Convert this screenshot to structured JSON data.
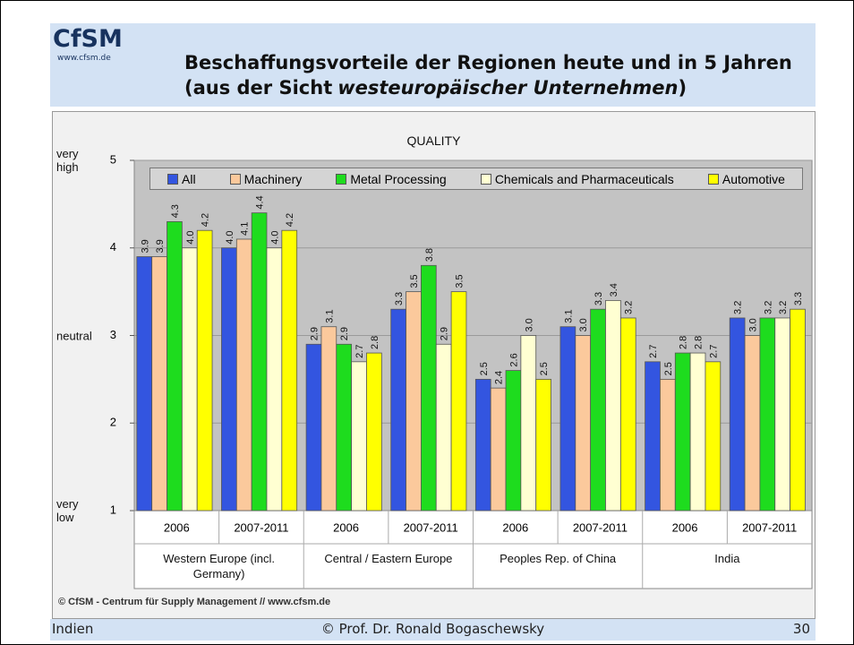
{
  "header": {
    "logo": "CfSM",
    "website": "www.cfsm.de",
    "title_line1": "Beschaffungsvorteile der Regionen heute und in 5 Jahren",
    "title_line2": {
      "prefix": "(aus der Sicht",
      "emphasis": "westeuropäischer Unternehmen",
      "suffix": ")"
    }
  },
  "chart_data": {
    "type": "bar",
    "title": "QUALITY",
    "categories": [
      "2006",
      "2007-2011",
      "2006",
      "2007-2011",
      "2006",
      "2007-2011",
      "2006",
      "2007-2011"
    ],
    "groups": [
      "Western Europe (incl. Germany)",
      "Central / Eastern Europe",
      "Peoples Rep. of China",
      "India"
    ],
    "series": [
      {
        "name": "All",
        "color": "#3355e0",
        "values": [
          3.9,
          4.0,
          2.9,
          3.3,
          2.5,
          3.1,
          2.7,
          3.2
        ],
        "value_labels": [
          "3.9",
          "4.0",
          "2.9",
          "3.3",
          "2.5",
          "3.1",
          "2.7",
          "3.2"
        ]
      },
      {
        "name": "Machinery",
        "color": "#fbc99c",
        "values": [
          3.9,
          4.1,
          3.1,
          3.5,
          2.4,
          3.0,
          2.5,
          3.0
        ],
        "value_labels": [
          "3.9",
          "4.1",
          "3.1",
          "3.5",
          "2.4",
          "3.0",
          "2.5",
          "3.0"
        ]
      },
      {
        "name": "Metal Processing",
        "color": "#1edc1e",
        "values": [
          4.3,
          4.4,
          2.9,
          3.8,
          2.6,
          3.3,
          2.8,
          3.2
        ],
        "value_labels": [
          "4.3",
          "4.4",
          "2.9",
          "3.8",
          "2.6",
          "3.3",
          "2.8",
          "3.2"
        ]
      },
      {
        "name": "Chemicals and Pharmaceuticals",
        "color": "#ffffd2",
        "values": [
          4.0,
          4.0,
          2.7,
          2.9,
          3.0,
          3.4,
          2.8,
          3.2
        ],
        "value_labels": [
          "4.0",
          "4.0",
          "2.7",
          "2.9",
          "3.0",
          "3.4",
          "2.8",
          "3.2"
        ]
      },
      {
        "name": "Automotive",
        "color": "#ffff00",
        "values": [
          4.2,
          4.2,
          2.8,
          3.5,
          2.5,
          3.2,
          2.7,
          3.3
        ],
        "value_labels": [
          "4.2",
          "4.2",
          "2.8",
          "3.5",
          "2.5",
          "3.2",
          "2.7",
          "3.3"
        ]
      }
    ],
    "ylim": [
      1,
      5
    ],
    "yticks": [
      1,
      2,
      3,
      4,
      5
    ],
    "y_notes": [
      {
        "value": 5,
        "label": "very high"
      },
      {
        "value": 3,
        "label": "neutral"
      },
      {
        "value": 1,
        "label": "very low"
      }
    ],
    "grid": true,
    "legend": "top",
    "source": "© CfSM - Centrum für Supply Management // www.cfsm.de"
  },
  "footer": {
    "left": "Indien",
    "center": "© Prof. Dr. Ronald Bogaschewsky",
    "right": "30"
  }
}
